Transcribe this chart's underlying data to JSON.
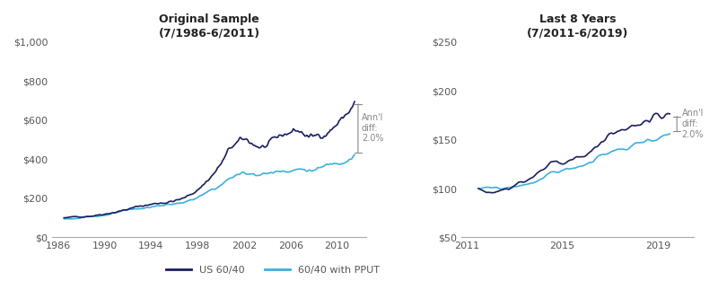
{
  "title1": "Original Sample\n(7/1986-6/2011)",
  "title2": "Last 8 Years\n(7/2011-6/2019)",
  "color_dark": "#1a1f5e",
  "color_light": "#3bb0e0",
  "color_ann_text": "#888888",
  "ann_text": "Ann'l\ndiff:\n2.0%",
  "legend_label1": "US 60/40",
  "legend_label2": "60/40 with PPUT",
  "background_color": "#ffffff",
  "ylim1": [
    0,
    1000
  ],
  "yticks1": [
    0,
    200,
    400,
    600,
    800,
    1000
  ],
  "ytick_labels1": [
    "$0",
    "$200",
    "$400",
    "$600",
    "$800",
    "$1,000"
  ],
  "xticks1": [
    1986,
    1990,
    1994,
    1998,
    2002,
    2006,
    2010
  ],
  "ylim2": [
    50,
    250
  ],
  "yticks2": [
    50,
    100,
    150,
    200,
    250
  ],
  "ytick_labels2": [
    "$50",
    "$100",
    "$150",
    "$200",
    "$250"
  ],
  "xticks2": [
    2011,
    2015,
    2019
  ]
}
